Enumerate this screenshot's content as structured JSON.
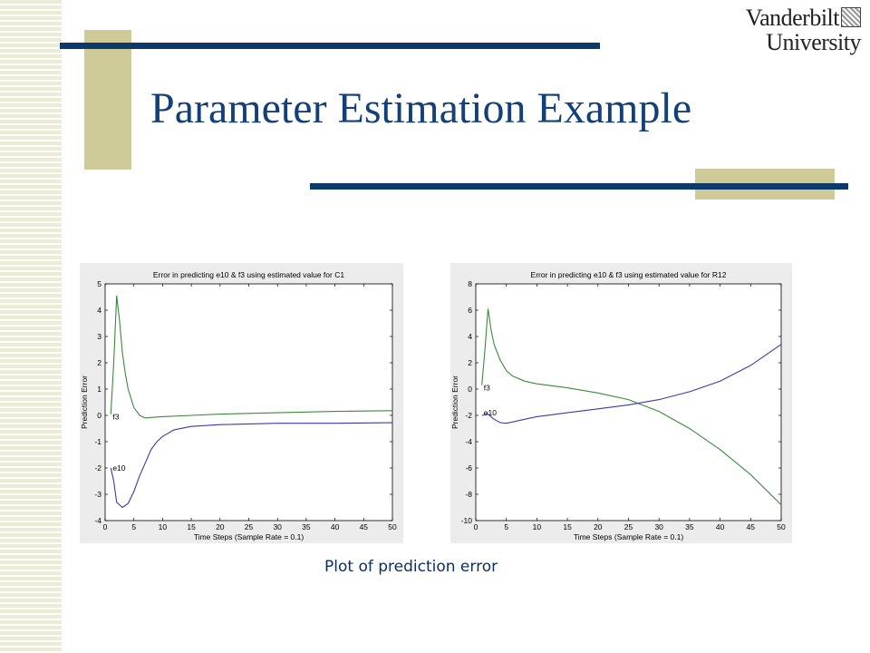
{
  "slide": {
    "title": "Parameter Estimation Example",
    "caption": "Plot of prediction error",
    "logo_line1": "Vanderbilt",
    "logo_line2": "University"
  },
  "colors": {
    "title": "#13407a",
    "accent_bar": "#0b3a6b",
    "khaki": "#cfcb99",
    "series_e10": "#3b3ba8",
    "series_f3": "#3a8a3a"
  },
  "chart_data": [
    {
      "type": "line",
      "title": "Error in predicting e10 & f3 using estimated value for C1",
      "xlabel": "Time Steps (Sample Rate = 0.1)",
      "ylabel": "Prediction Error",
      "xlim": [
        0,
        50
      ],
      "ylim": [
        -4,
        5
      ],
      "xticks": [
        0,
        5,
        10,
        15,
        20,
        25,
        30,
        35,
        40,
        45,
        50
      ],
      "yticks": [
        -4,
        -3,
        -2,
        -1,
        0,
        1,
        2,
        3,
        4,
        5
      ],
      "series": [
        {
          "name": "f3",
          "label_at": [
            1,
            -0.05
          ],
          "x": [
            1,
            1.5,
            2,
            2.5,
            3,
            3.5,
            4,
            5,
            6,
            7,
            8,
            10,
            15,
            20,
            30,
            40,
            50
          ],
          "y": [
            0.05,
            2.0,
            4.55,
            3.6,
            2.4,
            1.6,
            1.0,
            0.3,
            0.0,
            -0.1,
            -0.08,
            -0.05,
            0.0,
            0.05,
            0.1,
            0.15,
            0.18
          ]
        },
        {
          "name": "e10",
          "label_at": [
            1,
            -2.0
          ],
          "x": [
            1,
            1.5,
            2,
            2.5,
            3,
            4,
            5,
            6,
            7,
            8,
            9,
            10,
            12,
            15,
            20,
            30,
            40,
            50
          ],
          "y": [
            -2.0,
            -2.5,
            -3.3,
            -3.4,
            -3.5,
            -3.35,
            -2.9,
            -2.3,
            -1.8,
            -1.3,
            -1.0,
            -0.8,
            -0.55,
            -0.42,
            -0.35,
            -0.3,
            -0.3,
            -0.28
          ]
        }
      ]
    },
    {
      "type": "line",
      "title": "Error in predicting e10 & f3 using estimated value for R12",
      "xlabel": "Time Steps (Sample Rate = 0.1)",
      "ylabel": "Prediction Error",
      "xlim": [
        0,
        50
      ],
      "ylim": [
        -10,
        8
      ],
      "xticks": [
        0,
        5,
        10,
        15,
        20,
        25,
        30,
        35,
        40,
        45,
        50
      ],
      "yticks": [
        -10,
        -8,
        -6,
        -4,
        -2,
        0,
        2,
        4,
        6,
        8
      ],
      "series": [
        {
          "name": "f3",
          "label_at": [
            1,
            0.1
          ],
          "x": [
            1,
            1.5,
            2,
            2.5,
            3,
            4,
            5,
            6,
            8,
            10,
            15,
            20,
            25,
            30,
            35,
            40,
            45,
            50
          ],
          "y": [
            0.3,
            3.0,
            6.1,
            4.5,
            3.4,
            2.2,
            1.4,
            1.0,
            0.6,
            0.4,
            0.1,
            -0.3,
            -0.8,
            -1.7,
            -3.0,
            -4.6,
            -6.5,
            -8.8
          ]
        },
        {
          "name": "e10",
          "label_at": [
            1,
            -1.8
          ],
          "x": [
            1,
            2,
            3,
            4,
            5,
            6,
            8,
            10,
            15,
            20,
            25,
            30,
            35,
            40,
            45,
            50
          ],
          "y": [
            -2.0,
            -1.9,
            -2.3,
            -2.55,
            -2.6,
            -2.5,
            -2.3,
            -2.1,
            -1.8,
            -1.5,
            -1.2,
            -0.8,
            -0.2,
            0.6,
            1.8,
            3.4
          ]
        }
      ]
    }
  ]
}
